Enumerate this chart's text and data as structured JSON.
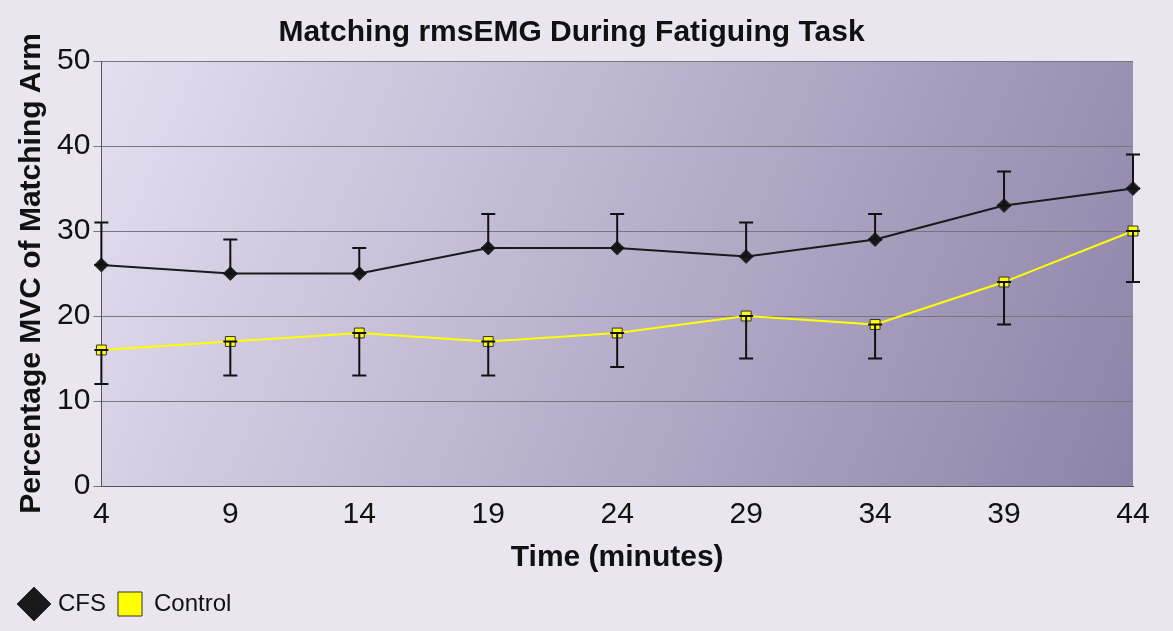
{
  "chart_data": {
    "type": "line",
    "title": "Matching rmsEMG During Fatiguing Task",
    "xlabel": "Time (minutes)",
    "ylabel": "Percentage MVC of Matching Arm",
    "categories": [
      "4",
      "9",
      "14",
      "19",
      "24",
      "29",
      "34",
      "39",
      "44"
    ],
    "series": [
      {
        "name": "CFS",
        "color": "#1a1a1a",
        "marker": "diamond",
        "values": [
          26,
          25,
          25,
          28,
          28,
          27,
          29,
          33,
          35
        ],
        "errors": [
          [
            26,
            31
          ],
          [
            25,
            29
          ],
          [
            25,
            28
          ],
          [
            28,
            32
          ],
          [
            28,
            32
          ],
          [
            27,
            31
          ],
          [
            29,
            32
          ],
          [
            33,
            37
          ],
          [
            35,
            39
          ]
        ]
      },
      {
        "name": "Control",
        "color": "#ffff00",
        "marker": "square",
        "values": [
          16,
          17,
          18,
          17,
          18,
          20,
          19,
          24,
          30
        ],
        "errors": [
          [
            12,
            16
          ],
          [
            13,
            17
          ],
          [
            13,
            18
          ],
          [
            13,
            17
          ],
          [
            14,
            18
          ],
          [
            15,
            20
          ],
          [
            15,
            19
          ],
          [
            19,
            24
          ],
          [
            24,
            30
          ]
        ]
      }
    ],
    "ylim": [
      0,
      50
    ],
    "yticks": [
      0,
      10,
      20,
      30,
      40,
      50
    ],
    "grid": "y",
    "legend": "bottom left",
    "line_style": "solid"
  }
}
